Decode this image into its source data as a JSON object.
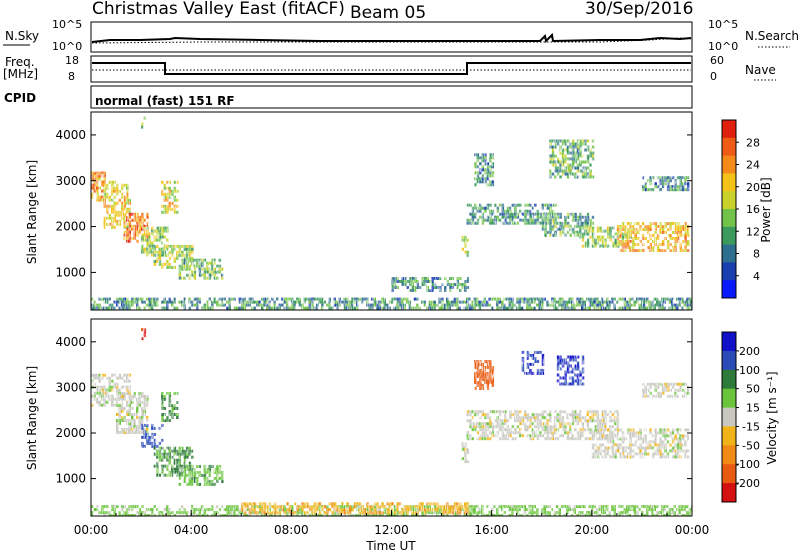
{
  "header": {
    "title": "Christmas Valley East (fitACF)",
    "beam": "Beam 05",
    "date": "30/Sep/2016"
  },
  "strip_nsky": {
    "left_label": "N.Sky",
    "left_ticks": [
      "10^5",
      "10^0"
    ],
    "right_ticks": [
      "10^5",
      "10^0"
    ],
    "right_label": "N.Search"
  },
  "strip_freq": {
    "left_label_1": "Freq.",
    "left_label_2": "[MHz]",
    "left_ticks": [
      "18",
      "8"
    ],
    "right_ticks": [
      "60",
      "0"
    ],
    "right_label": "Nave"
  },
  "strip_cpid": {
    "label": "CPID",
    "text": "normal (fast) 151 RF"
  },
  "colors": {
    "power_scale": [
      "#0a1aff",
      "#1a3fb0",
      "#2e6e8e",
      "#3c9a5c",
      "#73c24a",
      "#c8d22a",
      "#f5c21a",
      "#f58a1a",
      "#ef5a14",
      "#e0200f"
    ],
    "velocity_scale": [
      "#1010c8",
      "#2a4ab8",
      "#2e7a3a",
      "#6ac43c",
      "#c8c8c0",
      "#f0b418",
      "#f08a14",
      "#e85a10",
      "#d41010"
    ]
  },
  "chart_data": [
    {
      "type": "heatmap",
      "panel": "power",
      "xlabel": "",
      "ylabel": "Slant Range [km]",
      "yticks": [
        "1000",
        "2000",
        "3000",
        "4000"
      ],
      "ylim": [
        180,
        4500
      ],
      "xlim": [
        0,
        24
      ],
      "colorbar_label": "Power [dB]",
      "colorbar_ticks": [
        "4",
        "8",
        "12",
        "16",
        "20",
        "24",
        "28"
      ],
      "zlim": [
        0,
        30
      ],
      "regions": [
        {
          "t": [
            0.0,
            0.5
          ],
          "r": [
            2600,
            3200
          ],
          "z": 22
        },
        {
          "t": [
            0.5,
            1.5
          ],
          "r": [
            2000,
            3000
          ],
          "z": 18
        },
        {
          "t": [
            1.3,
            2.2
          ],
          "r": [
            1700,
            2300
          ],
          "z": 24
        },
        {
          "t": [
            2.0,
            3.0
          ],
          "r": [
            1400,
            2000
          ],
          "z": 14
        },
        {
          "t": [
            2.5,
            4.0
          ],
          "r": [
            1100,
            1600
          ],
          "z": 16
        },
        {
          "t": [
            3.5,
            5.2
          ],
          "r": [
            880,
            1300
          ],
          "z": 13
        },
        {
          "t": [
            2.8,
            3.4
          ],
          "r": [
            2300,
            3000
          ],
          "z": 18
        },
        {
          "t": [
            0.0,
            24.0
          ],
          "r": [
            200,
            450
          ],
          "z": 10
        },
        {
          "t": [
            12.0,
            15.0
          ],
          "r": [
            600,
            900
          ],
          "z": 10
        },
        {
          "t": [
            14.8,
            15.0
          ],
          "r": [
            1400,
            1800
          ],
          "z": 16
        },
        {
          "t": [
            15.0,
            18.5
          ],
          "r": [
            2050,
            2500
          ],
          "z": 10
        },
        {
          "t": [
            18.0,
            20.0
          ],
          "r": [
            1800,
            2300
          ],
          "z": 11
        },
        {
          "t": [
            19.5,
            21.5
          ],
          "r": [
            1600,
            2000
          ],
          "z": 14
        },
        {
          "t": [
            21.0,
            23.8
          ],
          "r": [
            1500,
            2100
          ],
          "z": 20
        },
        {
          "t": [
            15.3,
            16.0
          ],
          "r": [
            2900,
            3600
          ],
          "z": 10
        },
        {
          "t": [
            18.3,
            20.0
          ],
          "r": [
            3100,
            3900
          ],
          "z": 12
        },
        {
          "t": [
            22.0,
            23.8
          ],
          "r": [
            2800,
            3100
          ],
          "z": 9
        },
        {
          "t": [
            2.0,
            2.1
          ],
          "r": [
            4100,
            4400
          ],
          "z": 14
        }
      ]
    },
    {
      "type": "heatmap",
      "panel": "velocity",
      "xlabel": "Time UT",
      "xticks": [
        "00:00",
        "04:00",
        "08:00",
        "12:00",
        "16:00",
        "20:00",
        "00:00"
      ],
      "ylabel": "Slant Range [km]",
      "yticks": [
        "1000",
        "2000",
        "3000",
        "4000"
      ],
      "ylim": [
        180,
        4500
      ],
      "xlim": [
        0,
        24
      ],
      "colorbar_label": "Velocity [m s⁻¹]",
      "colorbar_ticks": [
        "200",
        "100",
        "50",
        "15",
        "-15",
        "-50",
        "-100",
        "-200"
      ],
      "zlim": [
        -250,
        250
      ],
      "regions": [
        {
          "t": [
            0.0,
            1.5
          ],
          "r": [
            2600,
            3300
          ],
          "v": 0
        },
        {
          "t": [
            1.0,
            2.2
          ],
          "r": [
            2000,
            2900
          ],
          "v": 0
        },
        {
          "t": [
            2.0,
            2.8
          ],
          "r": [
            1700,
            2200
          ],
          "v": 120
        },
        {
          "t": [
            2.5,
            4.0
          ],
          "r": [
            1100,
            1700
          ],
          "v": 60
        },
        {
          "t": [
            3.5,
            5.2
          ],
          "r": [
            880,
            1300
          ],
          "v": 40
        },
        {
          "t": [
            2.8,
            3.4
          ],
          "r": [
            2300,
            2900
          ],
          "v": 60
        },
        {
          "t": [
            0.0,
            24.0
          ],
          "r": [
            220,
            420
          ],
          "v": 30
        },
        {
          "t": [
            6.0,
            15.0
          ],
          "r": [
            250,
            480
          ],
          "v": -40
        },
        {
          "t": [
            14.8,
            15.0
          ],
          "r": [
            1400,
            1800
          ],
          "v": 0
        },
        {
          "t": [
            15.0,
            21.0
          ],
          "r": [
            1900,
            2500
          ],
          "v": 0
        },
        {
          "t": [
            20.0,
            23.8
          ],
          "r": [
            1500,
            2100
          ],
          "v": 0
        },
        {
          "t": [
            15.3,
            16.0
          ],
          "r": [
            3000,
            3600
          ],
          "v": -150
        },
        {
          "t": [
            17.2,
            18.0
          ],
          "r": [
            3300,
            3800
          ],
          "v": 200
        },
        {
          "t": [
            18.6,
            19.6
          ],
          "r": [
            3100,
            3700
          ],
          "v": 200
        },
        {
          "t": [
            22.0,
            23.8
          ],
          "r": [
            2800,
            3100
          ],
          "v": 0
        },
        {
          "t": [
            2.0,
            2.1
          ],
          "r": [
            4100,
            4300
          ],
          "v": -200
        }
      ]
    }
  ]
}
